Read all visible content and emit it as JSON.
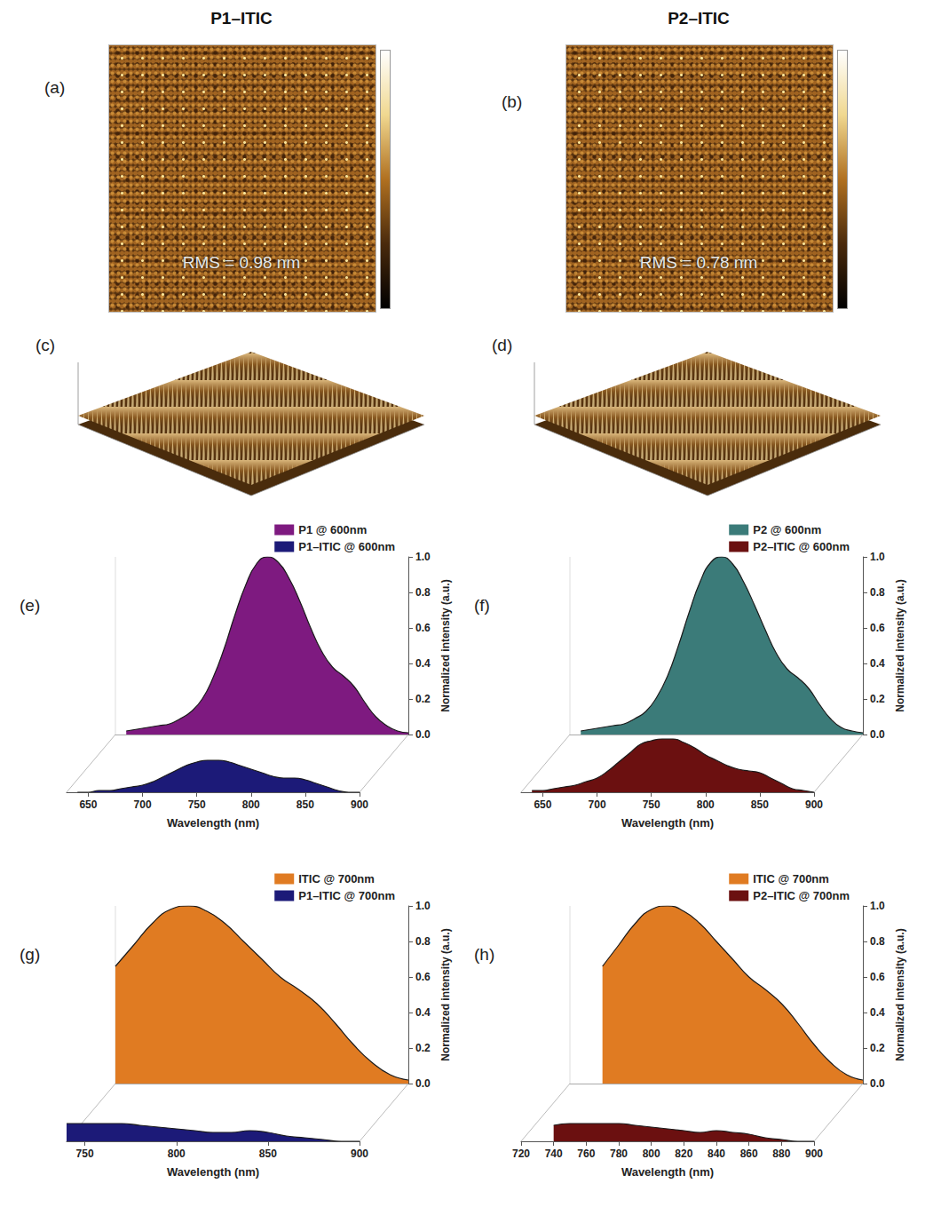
{
  "columns": [
    {
      "title": "P1–ITIC"
    },
    {
      "title": "P2–ITIC"
    }
  ],
  "afm_2d": [
    {
      "panel_label": "(a)",
      "rms": "RMS = 0.98 nm"
    },
    {
      "panel_label": "(b)",
      "rms": "RMS = 0.78 nm"
    }
  ],
  "afm_3d": [
    {
      "panel_label": "(c)"
    },
    {
      "panel_label": "(d)"
    }
  ],
  "chart_data": [
    {
      "type": "area",
      "panel_label": "(e)",
      "xlabel": "Wavelength (nm)",
      "ylabel": "Normalized intensity (a.u.)",
      "xlim": [
        630,
        900
      ],
      "xticks": [
        650,
        700,
        750,
        800,
        850,
        900
      ],
      "ylim": [
        0,
        1
      ],
      "yticks": [
        {
          "value": 0,
          "label": "0.0"
        },
        0.2,
        0.4,
        0.6,
        0.8,
        {
          "value": 1,
          "label": "1.0"
        }
      ],
      "grid": false,
      "legend": "upper right",
      "x": [
        640,
        650,
        660,
        670,
        680,
        690,
        700,
        710,
        720,
        730,
        740,
        750,
        760,
        770,
        780,
        790,
        800,
        810,
        820,
        830,
        840,
        850,
        860,
        870,
        880,
        890,
        900
      ],
      "series": [
        {
          "name": "P1 @ 600nm",
          "color": "#7e1a80",
          "values": [
            0.02,
            0.03,
            0.04,
            0.05,
            0.06,
            0.09,
            0.13,
            0.2,
            0.32,
            0.48,
            0.67,
            0.84,
            0.96,
            1.0,
            0.97,
            0.88,
            0.75,
            0.6,
            0.47,
            0.38,
            0.33,
            0.27,
            0.18,
            0.1,
            0.05,
            0.02,
            0.01
          ]
        },
        {
          "name": "P1–ITIC @ 600nm",
          "color": "#1c1a78",
          "values": [
            0.0,
            0.0,
            0.01,
            0.01,
            0.02,
            0.03,
            0.04,
            0.06,
            0.09,
            0.12,
            0.15,
            0.17,
            0.18,
            0.18,
            0.17,
            0.15,
            0.13,
            0.11,
            0.09,
            0.08,
            0.08,
            0.07,
            0.05,
            0.03,
            0.01,
            0.0,
            0.0
          ]
        }
      ]
    },
    {
      "type": "area",
      "panel_label": "(f)",
      "xlabel": "Wavelength (nm)",
      "ylabel": "Normalized intensity (a.u.)",
      "xlim": [
        630,
        900
      ],
      "xticks": [
        650,
        700,
        750,
        800,
        850,
        900
      ],
      "ylim": [
        0,
        1
      ],
      "yticks": [
        {
          "value": 0,
          "label": "0.0"
        },
        0.2,
        0.4,
        0.6,
        0.8,
        {
          "value": 1,
          "label": "1.0"
        }
      ],
      "grid": false,
      "legend": "upper right",
      "x": [
        640,
        650,
        660,
        670,
        680,
        690,
        700,
        710,
        720,
        730,
        740,
        750,
        760,
        770,
        780,
        790,
        800,
        810,
        820,
        830,
        840,
        850,
        860,
        870,
        880,
        890,
        900
      ],
      "series": [
        {
          "name": "P2 @ 600nm",
          "color": "#3b7b79",
          "values": [
            0.02,
            0.03,
            0.04,
            0.05,
            0.06,
            0.09,
            0.13,
            0.21,
            0.33,
            0.5,
            0.69,
            0.86,
            0.97,
            1.0,
            0.96,
            0.86,
            0.73,
            0.59,
            0.46,
            0.37,
            0.32,
            0.26,
            0.17,
            0.09,
            0.04,
            0.02,
            0.01
          ]
        },
        {
          "name": "P2–ITIC @ 600nm",
          "color": "#6b1010",
          "values": [
            0.01,
            0.01,
            0.02,
            0.03,
            0.04,
            0.06,
            0.08,
            0.12,
            0.17,
            0.22,
            0.27,
            0.29,
            0.3,
            0.3,
            0.28,
            0.25,
            0.21,
            0.18,
            0.15,
            0.13,
            0.12,
            0.11,
            0.08,
            0.05,
            0.02,
            0.01,
            0.0
          ]
        }
      ]
    },
    {
      "type": "area",
      "panel_label": "(g)",
      "xlabel": "Wavelength (nm)",
      "ylabel": "Normalized intensity (a.u.)",
      "xlim": [
        740,
        900
      ],
      "xticks": [
        750,
        800,
        850,
        900
      ],
      "ylim": [
        0,
        1
      ],
      "yticks": [
        {
          "value": 0,
          "label": "0.0"
        },
        0.2,
        0.4,
        0.6,
        0.8,
        {
          "value": 1,
          "label": "1.0"
        }
      ],
      "grid": false,
      "legend": "upper right",
      "x": [
        740,
        750,
        760,
        770,
        780,
        790,
        800,
        810,
        820,
        830,
        840,
        850,
        860,
        870,
        880,
        890,
        900
      ],
      "series": [
        {
          "name": "ITIC @ 700nm",
          "color": "#e07b22",
          "values": [
            0.66,
            0.78,
            0.9,
            0.98,
            1.0,
            0.97,
            0.9,
            0.8,
            0.7,
            0.6,
            0.53,
            0.45,
            0.34,
            0.22,
            0.12,
            0.05,
            0.02
          ]
        },
        {
          "name": "P1–ITIC @ 700nm",
          "color": "#1c1a78",
          "values": [
            0.1,
            0.1,
            0.1,
            0.1,
            0.09,
            0.08,
            0.07,
            0.06,
            0.05,
            0.05,
            0.06,
            0.05,
            0.03,
            0.02,
            0.01,
            0.0,
            0.0
          ]
        }
      ]
    },
    {
      "type": "area",
      "panel_label": "(h)",
      "xlabel": "Wavelength (nm)",
      "ylabel": "Normalized intensity (a.u.)",
      "xlim": [
        720,
        900
      ],
      "xticks": [
        720,
        740,
        760,
        780,
        800,
        820,
        840,
        860,
        880,
        900
      ],
      "ylim": [
        0,
        1
      ],
      "yticks": [
        {
          "value": 0,
          "label": "0.0"
        },
        0.2,
        0.4,
        0.6,
        0.8,
        {
          "value": 1,
          "label": "1.0"
        }
      ],
      "grid": false,
      "legend": "upper right",
      "x": [
        740,
        750,
        760,
        770,
        780,
        790,
        800,
        810,
        820,
        830,
        840,
        850,
        860,
        870,
        880,
        890,
        900
      ],
      "series": [
        {
          "name": "ITIC @ 700nm",
          "color": "#e07b22",
          "values": [
            0.66,
            0.78,
            0.9,
            0.98,
            1.0,
            0.97,
            0.9,
            0.8,
            0.7,
            0.6,
            0.53,
            0.45,
            0.34,
            0.22,
            0.12,
            0.05,
            0.02
          ]
        },
        {
          "name": "P2–ITIC @ 700nm",
          "color": "#6b1010",
          "values": [
            0.09,
            0.1,
            0.1,
            0.1,
            0.1,
            0.09,
            0.08,
            0.07,
            0.06,
            0.05,
            0.06,
            0.05,
            0.04,
            0.02,
            0.01,
            0.0,
            0.0
          ]
        }
      ]
    }
  ]
}
